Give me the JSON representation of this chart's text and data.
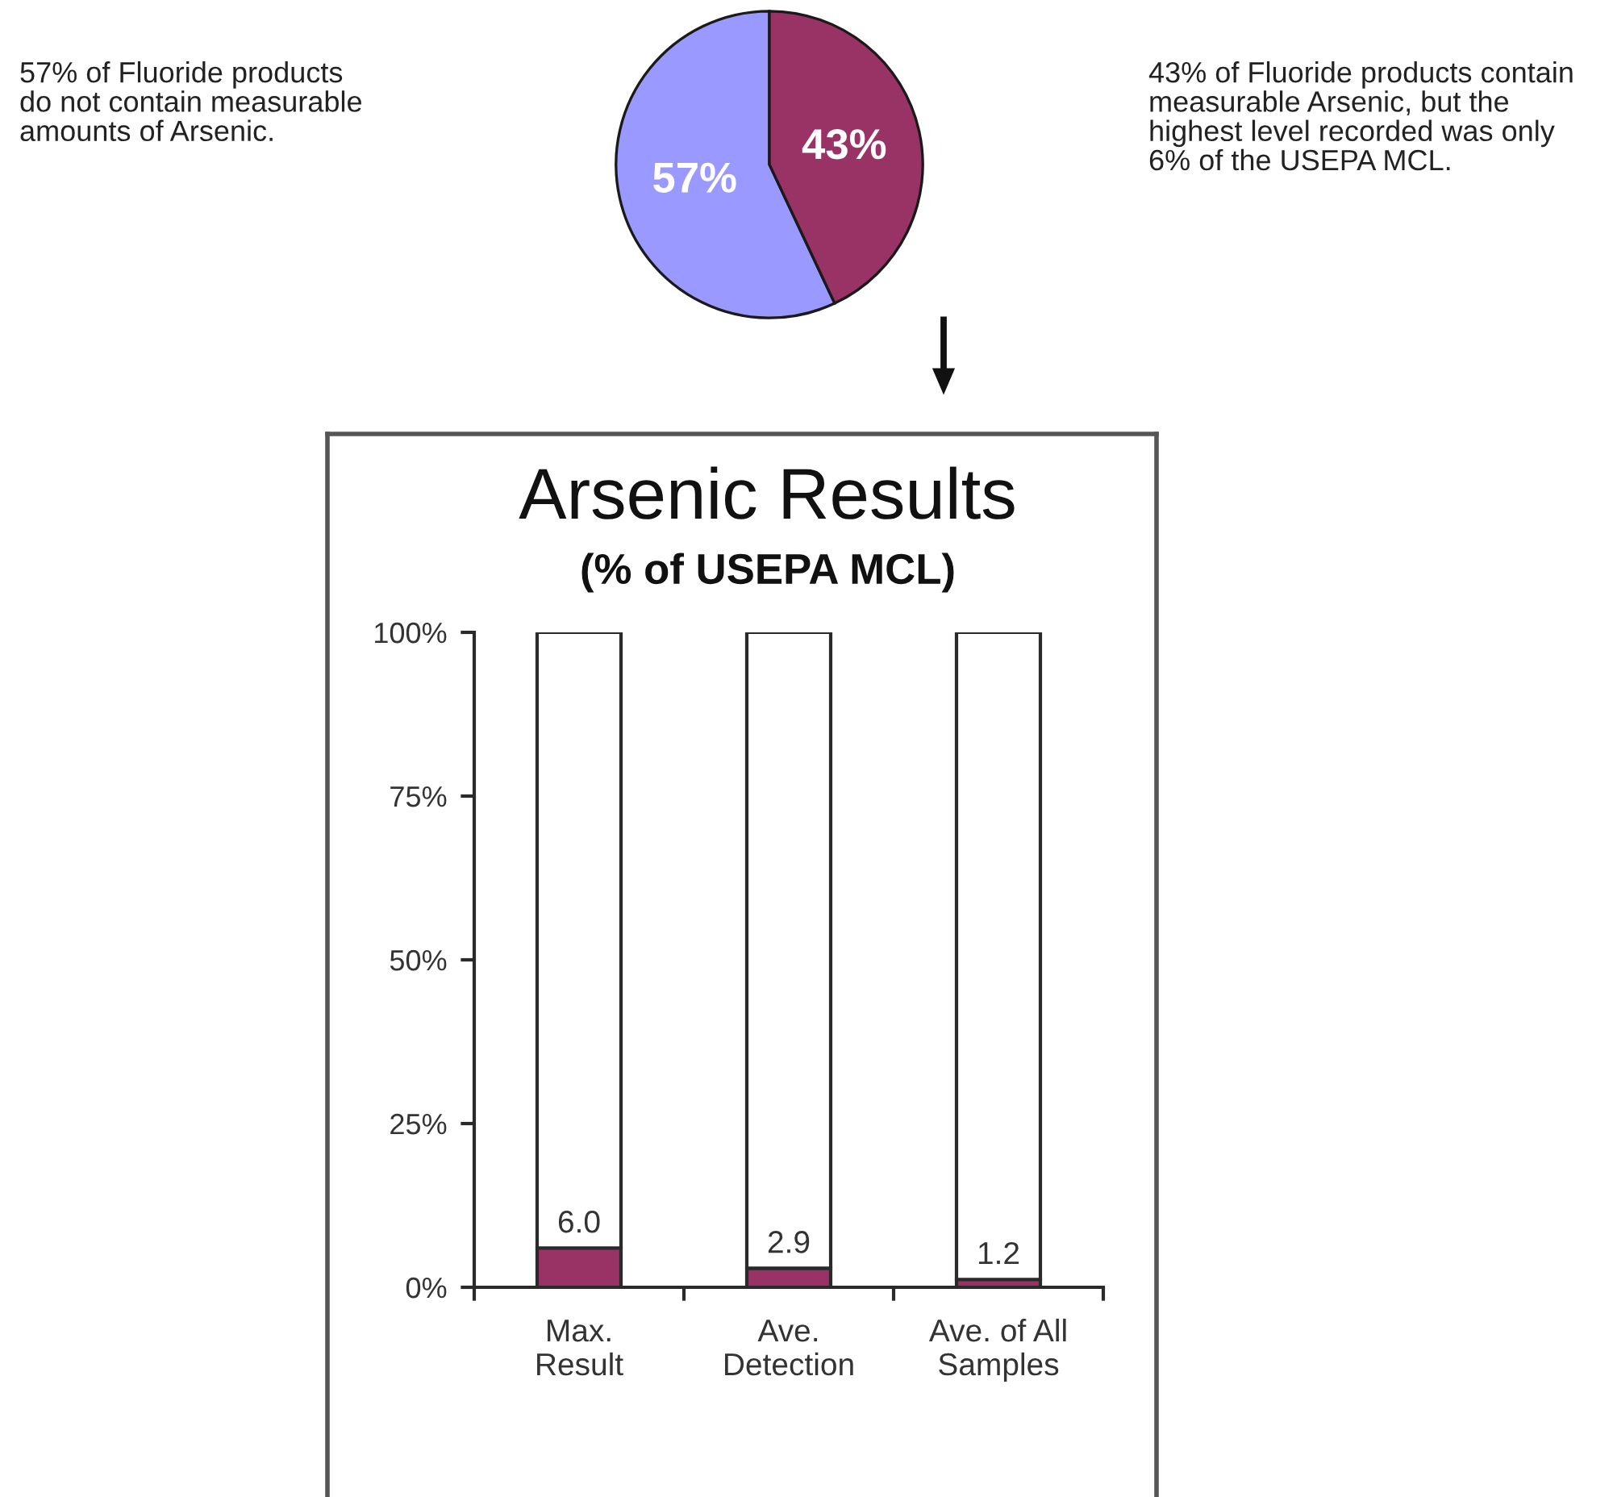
{
  "chart_data": [
    {
      "type": "pie",
      "categories": [
        null,
        null
      ],
      "values": [
        57,
        43
      ],
      "colors": [
        "#9999ff",
        "#993366"
      ],
      "value_labels": [
        "57%",
        "43%"
      ],
      "annotations": [
        "57% of Fluoride products\ndo not contain measurable\namounts of Arsenic.",
        "43% of Fluoride products contain\nmeasurable Arsenic, but the\nhighest level recorded was only\n6% of the USEPA MCL."
      ]
    },
    {
      "type": "bar",
      "title": "Arsenic Results",
      "subtitle": "(% of USEPA MCL)",
      "categories": [
        "Max.\nResult",
        "Ave.\nDetection",
        "Ave. of All\nSamples"
      ],
      "stacked": true,
      "series": [
        {
          "color": "#993366",
          "values": [
            6.0,
            2.9,
            1.2
          ],
          "value_labels": [
            "6.0",
            "2.9",
            "1.2"
          ]
        },
        {
          "color": "#ffffff",
          "values": [
            94.0,
            97.1,
            98.8
          ]
        }
      ],
      "ylim": [
        0,
        100
      ],
      "yticks": [
        {
          "value": 0,
          "label": "0%"
        },
        {
          "value": 25,
          "label": "25%"
        },
        {
          "value": 50,
          "label": "50%"
        },
        {
          "value": 75,
          "label": "75%"
        },
        {
          "value": 100,
          "label": "100%"
        }
      ]
    }
  ]
}
